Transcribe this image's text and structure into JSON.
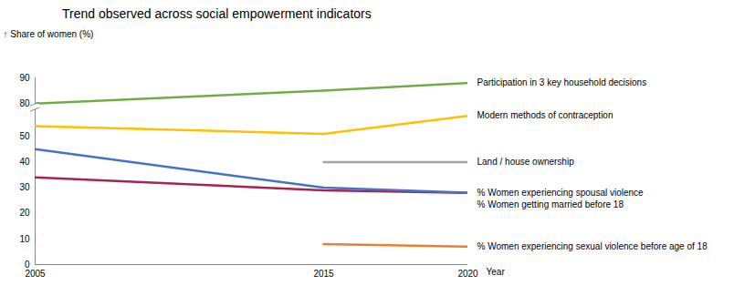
{
  "chart_data": {
    "type": "line",
    "title": "Trend observed across social empowerment indicators",
    "y_label": "Share of women (%)",
    "x_label": "Year",
    "x": [
      2005,
      2015,
      2020
    ],
    "xlim": [
      2005,
      2020
    ],
    "xticks": [
      2005,
      2015,
      2020
    ],
    "ylim": [
      0,
      90
    ],
    "yticks": [
      0,
      10,
      20,
      30,
      40,
      50,
      80,
      90
    ],
    "series": [
      {
        "name": "Participation in 3 key household decisions",
        "color": "#70ad47",
        "values": [
          80,
          85,
          88
        ]
      },
      {
        "name": "Modern methods of contraception",
        "color": "#ffc000",
        "values": [
          54,
          51,
          58
        ]
      },
      {
        "name": "Land / house ownership",
        "color": "#a5a5a5",
        "values": [
          null,
          40,
          40
        ]
      },
      {
        "name": "% Women experiencing spousal violence",
        "color": "#a9234f",
        "values": [
          34,
          29,
          28
        ]
      },
      {
        "name": "% Women getting married before 18",
        "color": "#4472c4",
        "values": [
          45,
          30,
          28
        ]
      },
      {
        "name": "% Women experiencing sexual violence before age of 18",
        "color": "#ed7d31",
        "values": [
          null,
          8,
          7
        ]
      }
    ]
  }
}
